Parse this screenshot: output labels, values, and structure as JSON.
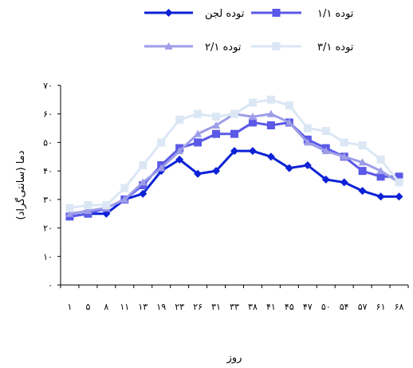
{
  "chart_data": {
    "type": "line",
    "xlabel": "روز",
    "ylabel": "دما (سانتی‌گراد)",
    "ylim": [
      0,
      70
    ],
    "y_ticks": [
      "۰",
      "۱۰",
      "۲۰",
      "۳۰",
      "۴۰",
      "۵۰",
      "۶۰",
      "۷۰"
    ],
    "categories": [
      "۱",
      "۵",
      "۸",
      "۱۱",
      "۱۳",
      "۱۹",
      "۲۳",
      "۲۶",
      "۳۱",
      "۳۳",
      "۳۸",
      "۴۱",
      "۴۵",
      "۴۷",
      "۵۰",
      "۵۴",
      "۵۷",
      "۶۱",
      "۶۸"
    ],
    "grid": false,
    "legend_position": "top",
    "series": [
      {
        "name": "توده لجن",
        "color": "#0d21d6",
        "marker": "diamond",
        "values": [
          24,
          25,
          25,
          30,
          32,
          40,
          44,
          39,
          40,
          47,
          47,
          45,
          41,
          42,
          37,
          36,
          33,
          31,
          31
        ]
      },
      {
        "name": "توده ۱/۱",
        "color": "#5a59e8",
        "marker": "square",
        "values": [
          24,
          25,
          27,
          30,
          35,
          42,
          48,
          50,
          53,
          53,
          57,
          56,
          57,
          51,
          48,
          45,
          40,
          38,
          38
        ]
      },
      {
        "name": "توده ۲/۱",
        "color": "#9d9de8",
        "marker": "triangle",
        "values": [
          25,
          26,
          27,
          30,
          36,
          41,
          47,
          53,
          56,
          60,
          59,
          60,
          57,
          50,
          47,
          45,
          43,
          40,
          36
        ]
      },
      {
        "name": "توده ۳/۱",
        "color": "#dbe7f4",
        "marker": "square",
        "values": [
          27,
          28,
          28,
          34,
          42,
          50,
          58,
          60,
          59,
          60,
          64,
          65,
          63,
          55,
          54,
          50,
          49,
          44,
          36
        ]
      }
    ]
  }
}
